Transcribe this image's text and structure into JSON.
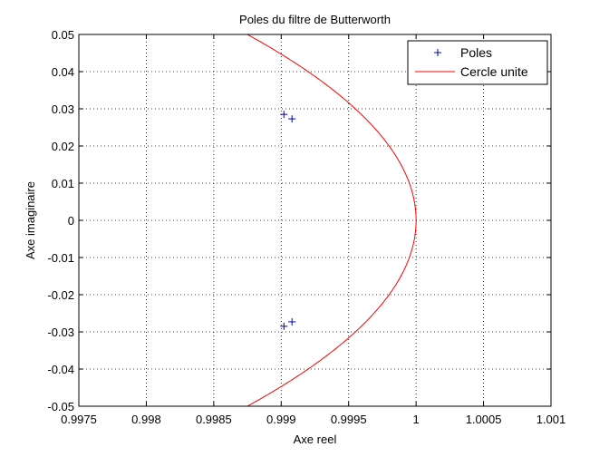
{
  "chart_data": {
    "type": "scatter",
    "title": "Poles du filtre de Butterworth",
    "xlabel": "Axe reel",
    "ylabel": "Axe imaginaire",
    "xlim": [
      0.9975,
      1.001
    ],
    "ylim": [
      -0.05,
      0.05
    ],
    "xticks": [
      "0.9975",
      "0.998",
      "0.9985",
      "0.999",
      "0.9995",
      "1",
      "1.0005",
      "1.001"
    ],
    "yticks": [
      "0.05",
      "0.04",
      "0.03",
      "0.02",
      "0.01",
      "0",
      "-0.01",
      "-0.02",
      "-0.03",
      "-0.04",
      "-0.05"
    ],
    "grid": true,
    "legend_position": "top-right",
    "series": [
      {
        "name": "Poles",
        "type": "scatter",
        "marker": "+",
        "color": "#0000a0",
        "x": [
          0.99902,
          0.99908,
          0.99902,
          0.99908
        ],
        "y": [
          0.0285,
          0.0273,
          -0.0285,
          -0.0273
        ]
      },
      {
        "name": "Cercle unite",
        "type": "line",
        "color": "#ff0000",
        "curve": "unit circle"
      }
    ]
  }
}
